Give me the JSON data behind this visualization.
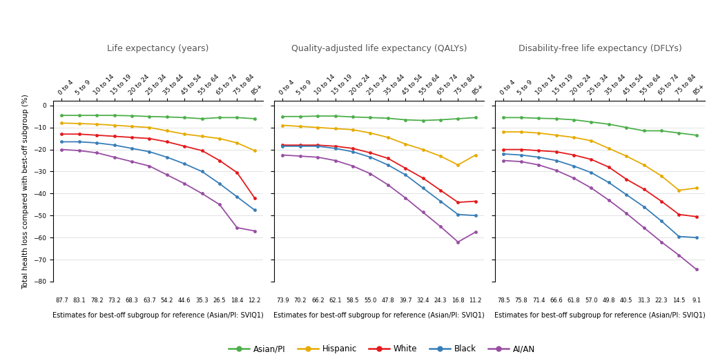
{
  "panels": [
    {
      "title": "Life expectancy (years)",
      "x_labels": [
        "0 to 4",
        "5 to 9",
        "10 to 14",
        "15 to 19",
        "20 to 24",
        "25 to 34",
        "35 to 44",
        "45 to 54",
        "55 to 64",
        "65 to 74",
        "75 to 84",
        "85+"
      ],
      "x_bottom": [
        "87.7",
        "83.1",
        "78.2",
        "73.2",
        "68.3",
        "63.7",
        "54.2",
        "44.6",
        "35.3",
        "26.5",
        "18.4",
        "12.2"
      ],
      "x_bottom_label": "Estimates for best-off subgroup for reference (Asian/PI: SVIQ1)",
      "series": {
        "Asian/PI": [
          -4.5,
          -4.5,
          -4.5,
          -4.5,
          -4.7,
          -5.0,
          -5.2,
          -5.5,
          -6.0,
          -5.5,
          -5.5,
          -6.0
        ],
        "Hispanic": [
          -8.0,
          -8.2,
          -8.5,
          -9.0,
          -9.5,
          -10.0,
          -11.5,
          -13.0,
          -14.0,
          -15.0,
          -17.0,
          -20.5
        ],
        "White": [
          -13.0,
          -13.0,
          -13.5,
          -14.0,
          -14.5,
          -15.0,
          -16.5,
          -18.5,
          -20.5,
          -25.0,
          -30.5,
          -42.0
        ],
        "Black": [
          -16.5,
          -16.5,
          -17.0,
          -18.0,
          -19.5,
          -21.0,
          -23.5,
          -26.5,
          -30.0,
          -35.5,
          -41.5,
          -47.5
        ],
        "AI/AN": [
          -20.0,
          -20.5,
          -21.5,
          -23.5,
          -25.5,
          -27.5,
          -31.5,
          -35.5,
          -40.0,
          -45.0,
          -55.5,
          -57.0
        ]
      }
    },
    {
      "title": "Quality-adjusted life expectancy (QALYs)",
      "x_labels": [
        "0 to 4",
        "5 to 9",
        "10 to 14",
        "15 to 19",
        "20 to 24",
        "25 to 34",
        "35 to 44",
        "45 to 54",
        "55 to 64",
        "65 to 74",
        "75 to 84",
        "85+"
      ],
      "x_bottom": [
        "73.9",
        "70.2",
        "66.2",
        "62.1",
        "58.5",
        "55.0",
        "47.8",
        "39.7",
        "32.4",
        "24.3",
        "16.8",
        "11.2"
      ],
      "x_bottom_label": "Estimates for best-off subgroup for reference (Asian/PI: SVIQ1)",
      "series": {
        "Asian/PI": [
          -5.0,
          -5.0,
          -4.8,
          -4.8,
          -5.2,
          -5.5,
          -5.8,
          -6.5,
          -6.8,
          -6.5,
          -6.0,
          -5.5
        ],
        "Hispanic": [
          -9.0,
          -9.5,
          -10.0,
          -10.5,
          -11.0,
          -12.5,
          -14.5,
          -17.5,
          -20.0,
          -23.0,
          -27.0,
          -22.5
        ],
        "White": [
          -18.0,
          -18.0,
          -18.0,
          -18.5,
          -19.5,
          -21.5,
          -24.0,
          -28.5,
          -33.0,
          -38.5,
          -44.0,
          -43.5
        ],
        "Black": [
          -18.5,
          -18.5,
          -18.5,
          -19.5,
          -21.0,
          -23.5,
          -27.0,
          -31.5,
          -37.5,
          -43.5,
          -49.5,
          -50.0
        ],
        "AI/AN": [
          -22.5,
          -23.0,
          -23.5,
          -25.0,
          -27.5,
          -31.0,
          -36.0,
          -42.0,
          -48.5,
          -55.0,
          -62.0,
          -57.5
        ]
      }
    },
    {
      "title": "Disability-free life expectancy (DFLYs)",
      "x_labels": [
        "0 to 4",
        "5 to 9",
        "10 to 14",
        "15 to 19",
        "20 to 24",
        "25 to 34",
        "35 to 44",
        "45 to 54",
        "55 to 64",
        "65 to 74",
        "75 to 84",
        "85+"
      ],
      "x_bottom": [
        "78.5",
        "75.8",
        "71.4",
        "66.6",
        "61.8",
        "57.0",
        "49.8",
        "40.5",
        "31.3",
        "22.3",
        "14.5",
        "9.1"
      ],
      "x_bottom_label": "Estimates for best-off subgroup for reference (Asian/PI: SVIQ1)",
      "series": {
        "Asian/PI": [
          -5.5,
          -5.5,
          -5.8,
          -6.0,
          -6.5,
          -7.5,
          -8.5,
          -10.0,
          -11.5,
          -11.5,
          -12.5,
          -13.5
        ],
        "Hispanic": [
          -12.0,
          -12.0,
          -12.5,
          -13.5,
          -14.5,
          -16.0,
          -19.5,
          -23.0,
          -27.0,
          -32.0,
          -38.5,
          -37.5
        ],
        "White": [
          -20.0,
          -20.0,
          -20.5,
          -21.0,
          -22.5,
          -24.5,
          -28.0,
          -33.5,
          -38.0,
          -43.5,
          -49.5,
          -50.5
        ],
        "Black": [
          -22.0,
          -22.5,
          -23.5,
          -25.0,
          -27.5,
          -30.5,
          -35.0,
          -40.5,
          -46.0,
          -52.5,
          -59.5,
          -60.0
        ],
        "AI/AN": [
          -25.0,
          -25.5,
          -27.0,
          -29.5,
          -33.0,
          -37.5,
          -43.0,
          -49.0,
          -55.5,
          -62.0,
          -68.0,
          -74.5
        ]
      }
    }
  ],
  "series_colors": {
    "Asian/PI": "#4daf4a",
    "Hispanic": "#e6ab02",
    "White": "#e41a1c",
    "Black": "#377eb8",
    "AI/AN": "#984ea3"
  },
  "ylim": [
    -80,
    2
  ],
  "yticks": [
    0,
    -10,
    -20,
    -30,
    -40,
    -50,
    -60,
    -70,
    -80
  ],
  "ylabel": "Total health loss compared with best-off subgroup (%)",
  "legend_order": [
    "Asian/PI",
    "Hispanic",
    "White",
    "Black",
    "AI/AN"
  ],
  "background_color": "#ffffff",
  "title_fontsize": 9,
  "label_fontsize": 7.5,
  "tick_fontsize": 6.5,
  "legend_fontsize": 8.5
}
